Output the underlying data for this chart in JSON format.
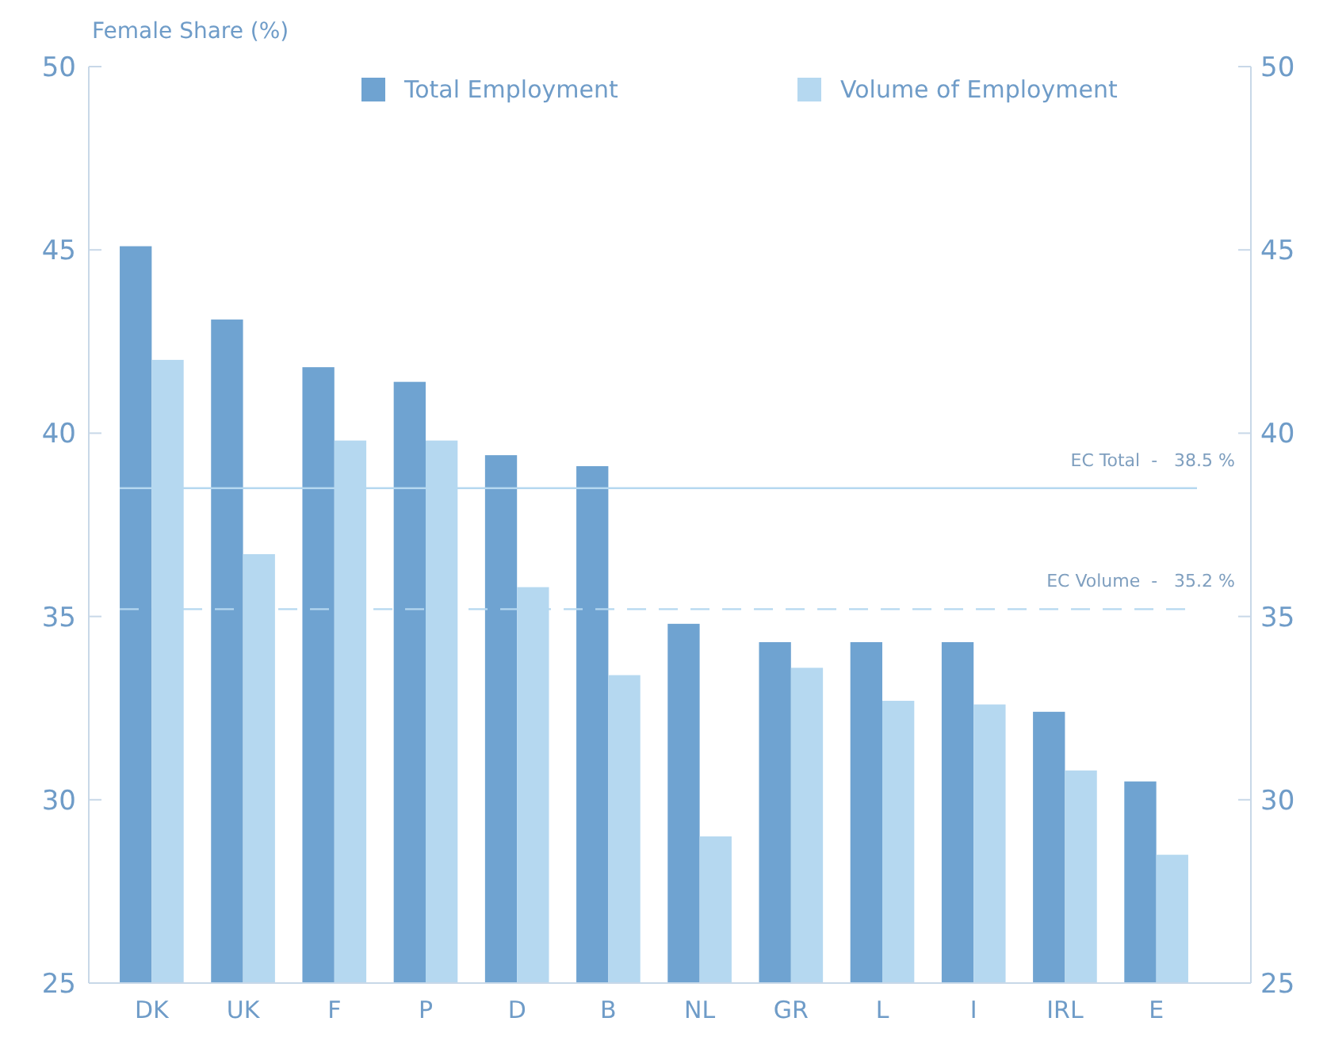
{
  "chart_data": {
    "type": "bar",
    "ylabel": "Female Share (%)",
    "categories": [
      "DK",
      "UK",
      "F",
      "P",
      "D",
      "B",
      "NL",
      "GR",
      "L",
      "I",
      "IRL",
      "E"
    ],
    "series": [
      {
        "name": "Total Employment",
        "color": "#6fa3d1",
        "values": [
          45.1,
          43.1,
          41.8,
          41.4,
          39.4,
          39.1,
          34.8,
          34.3,
          34.3,
          34.3,
          32.4,
          30.5
        ]
      },
      {
        "name": "Volume of Employment",
        "color": "#b5d8f0",
        "values": [
          42.0,
          36.7,
          39.8,
          39.8,
          35.8,
          33.4,
          29.0,
          33.6,
          32.7,
          32.6,
          30.8,
          28.5
        ]
      }
    ],
    "ylim": [
      25,
      50
    ],
    "yticks": [
      25,
      30,
      35,
      40,
      45,
      50
    ],
    "y2lim": [
      25,
      50
    ],
    "y2ticks": [
      25,
      30,
      35,
      40,
      45,
      50
    ],
    "ref_lines": [
      {
        "axis": "y",
        "value": 38.5,
        "label": "EC Total  -   38.5 %",
        "color": "#b5d8f0",
        "line_style": "solid"
      },
      {
        "axis": "y",
        "value": 35.2,
        "label": "EC Volume  -   35.2 %",
        "color": "#b5d8f0",
        "line_style": "dashed"
      }
    ],
    "legend": "top",
    "grid": false
  }
}
